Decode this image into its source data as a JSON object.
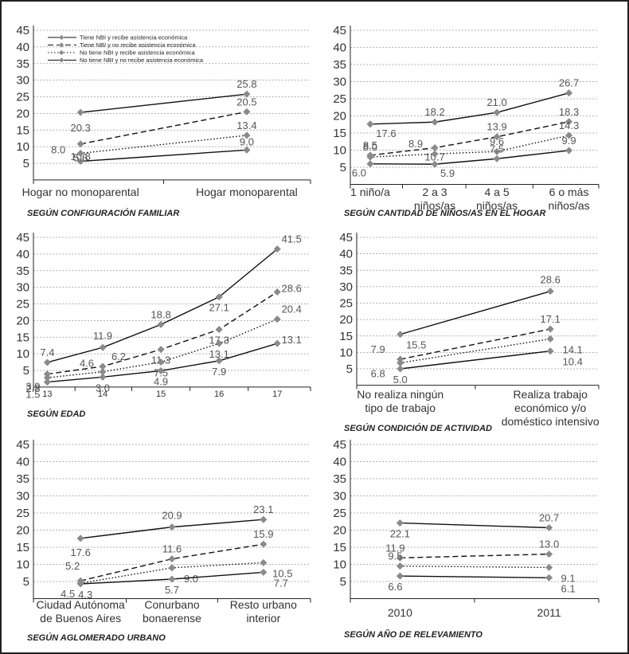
{
  "legend": [
    "Tiene NBI y recibe asistencia económica",
    "Tiene NBI y no recibe asistencia económica",
    "No tiene NBI y recibe asistencia económica",
    "No tiene NBI y no recibe asistencia económica"
  ],
  "colors": {
    "line": "#111111",
    "marker": "#8a8a8a",
    "grid": "#9a9a9a",
    "axis": "#222222"
  },
  "chart_data": [
    {
      "type": "line",
      "title": "SEGÚN CONFIGURACIÓN FAMILIAR",
      "categories": [
        "Hogar no monoparental",
        "Hogar monoparental"
      ],
      "ylim": [
        0,
        45
      ],
      "yticks": [
        5,
        10,
        15,
        20,
        25,
        30,
        35,
        40,
        45
      ],
      "grid": true,
      "legend_position": "top-left",
      "series": [
        {
          "name": "Tiene NBI y recibe asistencia económica",
          "values": [
            20.3,
            25.8
          ]
        },
        {
          "name": "Tiene NBI y no recibe asistencia económica",
          "values": [
            10.8,
            20.5
          ]
        },
        {
          "name": "No tiene NBI y recibe asistencia económica",
          "values": [
            8.0,
            13.4
          ]
        },
        {
          "name": "No tiene NBI y no recibe asistencia económica",
          "values": [
            5.6,
            9.0
          ]
        }
      ]
    },
    {
      "type": "line",
      "title": "SEGÚN CANTIDAD DE NIÑOS/AS EN EL HOGAR",
      "categories": [
        "1 niño/a",
        "2 a 3 niños/as",
        "4 a 5 niños/as",
        "6 o más niños/as"
      ],
      "ylim": [
        0,
        45
      ],
      "yticks": [
        5,
        10,
        15,
        20,
        25,
        30,
        35,
        40,
        45
      ],
      "grid": true,
      "series": [
        {
          "name": "Tiene NBI y recibe asistencia económica",
          "values": [
            17.6,
            18.2,
            21.0,
            26.7
          ]
        },
        {
          "name": "Tiene NBI y no recibe asistencia económica",
          "values": [
            8.5,
            10.7,
            13.9,
            18.3
          ]
        },
        {
          "name": "No tiene NBI y recibe asistencia económica",
          "values": [
            8.0,
            8.9,
            9.6,
            14.3
          ]
        },
        {
          "name": "No tiene NBI y no recibe asistencia económica",
          "values": [
            6.0,
            5.9,
            7.5,
            9.9
          ]
        }
      ]
    },
    {
      "type": "line",
      "title": "SEGÚN EDAD",
      "categories": [
        "13",
        "14",
        "15",
        "16",
        "17"
      ],
      "ylim": [
        0,
        45
      ],
      "yticks": [
        5,
        10,
        15,
        20,
        25,
        30,
        35,
        40,
        45
      ],
      "grid": true,
      "series": [
        {
          "name": "Tiene NBI y recibe asistencia económica",
          "values": [
            7.4,
            11.9,
            18.8,
            27.1,
            41.5
          ]
        },
        {
          "name": "Tiene NBI y no recibe asistencia económica",
          "values": [
            3.9,
            6.2,
            11.3,
            17.3,
            28.6
          ]
        },
        {
          "name": "No tiene NBI y recibe asistencia económica",
          "values": [
            2.8,
            4.6,
            7.5,
            13.1,
            20.4
          ]
        },
        {
          "name": "No tiene NBI y no recibe asistencia económica",
          "values": [
            1.5,
            3.0,
            4.9,
            7.9,
            13.1
          ]
        }
      ]
    },
    {
      "type": "line",
      "title": "SEGÚN CONDICIÓN DE ACTIVIDAD",
      "categories": [
        "No realiza ningún tipo de trabajo",
        "Realiza trabajo económico y/o doméstico intensivo"
      ],
      "ylim": [
        0,
        45
      ],
      "yticks": [
        5,
        10,
        15,
        20,
        25,
        30,
        35,
        40,
        45
      ],
      "grid": true,
      "series": [
        {
          "name": "Tiene NBI y recibe asistencia económica",
          "values": [
            15.5,
            28.6
          ]
        },
        {
          "name": "Tiene NBI y no recibe asistencia económica",
          "values": [
            7.9,
            17.1
          ]
        },
        {
          "name": "No tiene NBI y recibe asistencia económica",
          "values": [
            6.8,
            14.1
          ]
        },
        {
          "name": "No tiene NBI y no recibe asistencia económica",
          "values": [
            5.0,
            10.4
          ]
        }
      ]
    },
    {
      "type": "line",
      "title": "SEGÚN AGLOMERADO URBANO",
      "categories": [
        "Ciudad Autónoma de Buenos Aires",
        "Conurbano bonaerense",
        "Resto urbano interior"
      ],
      "ylim": [
        0,
        45
      ],
      "yticks": [
        5,
        10,
        15,
        20,
        25,
        30,
        35,
        40,
        45
      ],
      "grid": true,
      "series": [
        {
          "name": "Tiene NBI y recibe asistencia económica",
          "values": [
            17.6,
            20.9,
            23.1
          ]
        },
        {
          "name": "Tiene NBI y no recibe asistencia económica",
          "values": [
            5.2,
            11.6,
            15.9
          ]
        },
        {
          "name": "No tiene NBI y recibe asistencia económica",
          "values": [
            4.5,
            9.0,
            10.5
          ]
        },
        {
          "name": "No tiene NBI y no recibe asistencia económica",
          "values": [
            4.3,
            5.7,
            7.7
          ]
        }
      ]
    },
    {
      "type": "line",
      "title": "SEGÚN AÑO DE RELEVAMIENTO",
      "categories": [
        "2010",
        "2011"
      ],
      "ylim": [
        0,
        45
      ],
      "yticks": [
        5,
        10,
        15,
        20,
        25,
        30,
        35,
        40,
        45
      ],
      "grid": true,
      "series": [
        {
          "name": "Tiene NBI y recibe asistencia económica",
          "values": [
            22.1,
            20.7
          ]
        },
        {
          "name": "Tiene NBI y no recibe asistencia económica",
          "values": [
            11.9,
            13.0
          ]
        },
        {
          "name": "No tiene NBI y recibe asistencia económica",
          "values": [
            9.5,
            9.1
          ]
        },
        {
          "name": "No tiene NBI y no recibe asistencia económica",
          "values": [
            6.6,
            6.1
          ]
        }
      ]
    }
  ]
}
